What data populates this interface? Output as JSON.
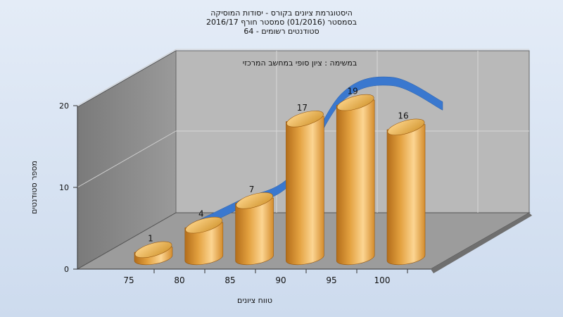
{
  "chart_data": {
    "type": "bar",
    "title": [
      "היסטוגרמת ציונים בקורס - יסודות המוסיקה",
      "בסמסטר  (01/2016)  סמסטר חורף 2016/17",
      "סטודנטים רשומים - 64"
    ],
    "annotation": "במשימה : ציון סופי במחשב המרכזי",
    "xlabel": "טווח ציונים",
    "ylabel": "מספר סטודנטים",
    "categories": [
      "75",
      "80",
      "85",
      "90",
      "95",
      "100"
    ],
    "values": [
      1,
      4,
      7,
      17,
      19,
      16
    ],
    "y_ticks": [
      "0",
      "10",
      "20"
    ],
    "ylim": [
      0,
      20
    ],
    "grid": true,
    "trend_line": true,
    "colors": {
      "bar_light": "#fcd592",
      "bar_mid": "#e3a13f",
      "bar_dark": "#b36d1a",
      "trend": "#3a78cf",
      "back_wall": "#b9b9b9",
      "side_wall": "#8a8a8a",
      "floor": "#9c9c9c"
    }
  }
}
